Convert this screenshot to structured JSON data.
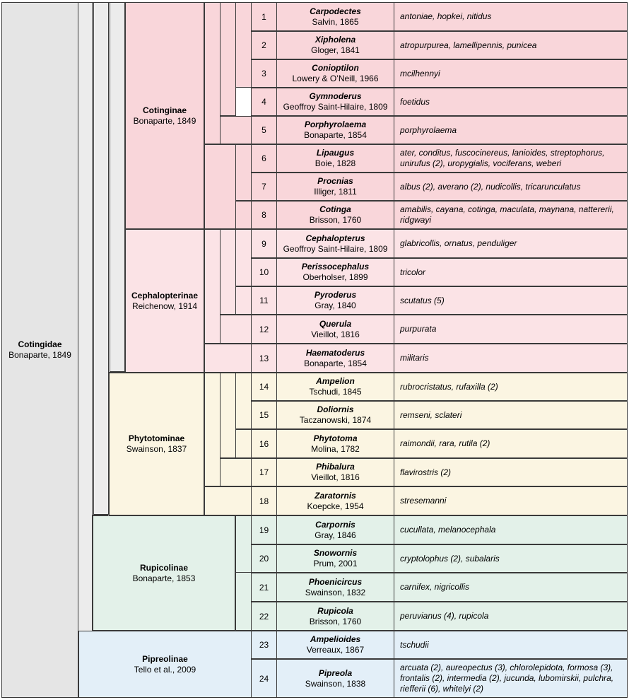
{
  "family": {
    "name": "Cotingidae",
    "author": "Bonaparte, 1849"
  },
  "subfamilies": [
    {
      "name": "Cotinginae",
      "author": "Bonaparte, 1849"
    },
    {
      "name": "Cephalopterinae",
      "author": "Reichenow, 1914"
    },
    {
      "name": "Phytotominae",
      "author": "Swainson, 1837"
    },
    {
      "name": "Rupicolinae",
      "author": "Bonaparte, 1853"
    },
    {
      "name": "Pipreolinae",
      "author": "Tello et al., 2009"
    }
  ],
  "genera": [
    {
      "num": "1",
      "genus": "Carpodectes",
      "author": "Salvin, 1865",
      "species": "antoniae, hopkei, nitidus"
    },
    {
      "num": "2",
      "genus": "Xipholena",
      "author": "Gloger, 1841",
      "species": "atropurpurea, lamellipennis, punicea"
    },
    {
      "num": "3",
      "genus": "Conioptilon",
      "author": "Lowery & O’Neill, 1966",
      "species": "mcilhennyi"
    },
    {
      "num": "4",
      "genus": "Gymnoderus",
      "author": "Geoffroy Saint-Hilaire, 1809",
      "species": "foetidus"
    },
    {
      "num": "5",
      "genus": "Porphyrolaema",
      "author": "Bonaparte, 1854",
      "species": "porphyrolaema"
    },
    {
      "num": "6",
      "genus": "Lipaugus",
      "author": "Boie, 1828",
      "species": "ater, conditus, fuscocinereus, lanioides, streptophorus, unirufus (2), uropygialis, vociferans, weberi"
    },
    {
      "num": "7",
      "genus": "Procnias",
      "author": "Illiger, 1811",
      "species": "albus (2), averano (2), nudicollis, tricarunculatus"
    },
    {
      "num": "8",
      "genus": "Cotinga",
      "author": "Brisson, 1760",
      "species": "amabilis, cayana, cotinga, maculata, maynana, nattererii, ridgwayi"
    },
    {
      "num": "9",
      "genus": "Cephalopterus",
      "author": "Geoffroy Saint-Hilaire, 1809",
      "species": "glabricollis, ornatus, penduliger"
    },
    {
      "num": "10",
      "genus": "Perissocephalus",
      "author": "Oberholser, 1899",
      "species": "tricolor"
    },
    {
      "num": "11",
      "genus": "Pyroderus",
      "author": "Gray, 1840",
      "species": "scutatus (5)"
    },
    {
      "num": "12",
      "genus": "Querula",
      "author": "Vieillot, 1816",
      "species": "purpurata"
    },
    {
      "num": "13",
      "genus": "Haematoderus",
      "author": "Bonaparte, 1854",
      "species": "militaris"
    },
    {
      "num": "14",
      "genus": "Ampelion",
      "author": "Tschudi, 1845",
      "species": "rubrocristatus, rufaxilla (2)"
    },
    {
      "num": "15",
      "genus": "Doliornis",
      "author": "Taczanowski, 1874",
      "species": "remseni, sclateri"
    },
    {
      "num": "16",
      "genus": "Phytotoma",
      "author": "Molina, 1782",
      "species": "raimondii, rara, rutila (2)"
    },
    {
      "num": "17",
      "genus": "Phibalura",
      "author": "Vieillot, 1816",
      "species": "flavirostris (2)"
    },
    {
      "num": "18",
      "genus": "Zaratornis",
      "author": "Koepcke, 1954",
      "species": "stresemanni"
    },
    {
      "num": "19",
      "genus": "Carpornis",
      "author": "Gray, 1846",
      "species": "cucullata, melanocephala"
    },
    {
      "num": "20",
      "genus": "Snowornis",
      "author": "Prum, 2001",
      "species": "cryptolophus (2), subalaris"
    },
    {
      "num": "21",
      "genus": "Phoenicircus",
      "author": "Swainson, 1832",
      "species": "carnifex, nigricollis"
    },
    {
      "num": "22",
      "genus": "Rupicola",
      "author": "Brisson, 1760",
      "species": "peruvianus (4), rupicola"
    },
    {
      "num": "23",
      "genus": "Ampelioides",
      "author": "Verreaux, 1867",
      "species": "tschudii"
    },
    {
      "num": "24",
      "genus": "Pipreola",
      "author": "Swainson, 1838",
      "species": "arcuata (2), aureopectus (3), chlorolepidota, formosa (3), frontalis (2), intermedia (2), jucunda, lubomirskii, pulchra, riefferii (6), whitelyi (2)"
    }
  ],
  "colors": {
    "cotinginae": "#f9d6da",
    "cephalopterinae": "#fbe3e6",
    "phytotominae": "#fbf5e2",
    "rupicolinae": "#e3f1e9",
    "pipreolinae": "#e3eff8",
    "family": "#e5e5e5"
  }
}
